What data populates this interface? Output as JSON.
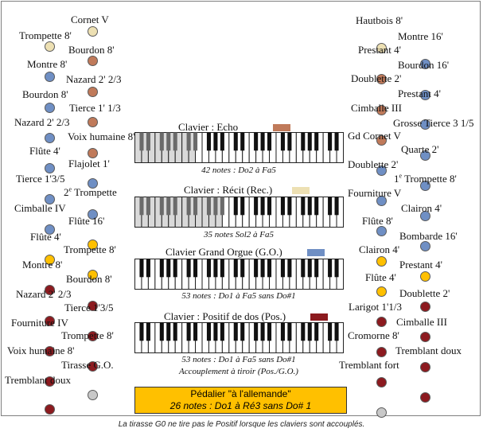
{
  "colors": {
    "echo": "#c07a5a",
    "recit": "#ede0b3",
    "grand_orgue": "#6f8fc4",
    "positif": "#8c1a1f",
    "tirasse": "#c8c8c8",
    "pedale": "#ffc000"
  },
  "left_stops": [
    {
      "label": "Cornet V",
      "color": "recit"
    },
    {
      "label": "Trompette 8'",
      "color": "recit"
    },
    {
      "label": "Bourdon 8'",
      "color": "echo"
    },
    {
      "label": "Montre 8'",
      "color": "grand_orgue"
    },
    {
      "label": "Nazard 2' 2/3",
      "color": "echo"
    },
    {
      "label": "Bourdon 8'",
      "color": "grand_orgue"
    },
    {
      "label": "Tierce 1' 1/3",
      "color": "echo"
    },
    {
      "label": "Nazard 2' 2/3",
      "color": "grand_orgue"
    },
    {
      "label": "Voix humaine 8'",
      "color": "echo"
    },
    {
      "label": "Flûte 4'",
      "color": "grand_orgue"
    },
    {
      "label": "Flajolet 1'",
      "color": "grand_orgue"
    },
    {
      "label": "Tierce 1'3/5",
      "color": "grand_orgue"
    },
    {
      "label_pre": "2",
      "label_sup": "e",
      "label": " Trompette",
      "color": "grand_orgue"
    },
    {
      "label": "Cimballe IV",
      "color": "grand_orgue"
    },
    {
      "label": "Flûte 16'",
      "color": "pedale"
    },
    {
      "label": "Flûte 4'",
      "color": "pedale"
    },
    {
      "label": "Trompette 8'",
      "color": "pedale"
    },
    {
      "label": "Montre 8'",
      "color": "positif"
    },
    {
      "label": "Bourdon 8'",
      "color": "positif"
    },
    {
      "label": "Nazard 2' 2/3",
      "color": "positif"
    },
    {
      "label": "Tierce 1'3/5",
      "color": "positif"
    },
    {
      "label": "Fourniture IV",
      "color": "positif"
    },
    {
      "label": "Trompette 8'",
      "color": "positif"
    },
    {
      "label": "Voix humaine 8'",
      "color": "positif"
    },
    {
      "label": "Tirasse G.O.",
      "color": "tirasse"
    },
    {
      "label": "Tremblant doux",
      "color": "positif"
    }
  ],
  "right_stops": [
    {
      "label": "Hautbois 8'",
      "color": "recit"
    },
    {
      "label": "Montre 16'",
      "color": "grand_orgue"
    },
    {
      "label": "Prestant 4'",
      "color": "echo"
    },
    {
      "label": "Bourdon 16'",
      "color": "grand_orgue"
    },
    {
      "label": "Doublette 2'",
      "color": "echo"
    },
    {
      "label": "Prestant 4'",
      "color": "grand_orgue"
    },
    {
      "label": "Cimballe III",
      "color": "echo"
    },
    {
      "label": "Grosse Tierce 3 1/5",
      "color": "grand_orgue"
    },
    {
      "label": "Gd Cornet V",
      "color": "grand_orgue"
    },
    {
      "label": "Quarte 2'",
      "color": "grand_orgue"
    },
    {
      "label": "Doublette 2'",
      "color": "grand_orgue"
    },
    {
      "label_pre": "1",
      "label_sup": "e",
      "label": " Trompette 8'",
      "color": "grand_orgue"
    },
    {
      "label": "Fourniture V",
      "color": "grand_orgue"
    },
    {
      "label": "Clairon 4'",
      "color": "grand_orgue"
    },
    {
      "label": "Flûte 8'",
      "color": "pedale"
    },
    {
      "label": "Bombarde 16'",
      "color": "pedale"
    },
    {
      "label": "Clairon 4'",
      "color": "pedale"
    },
    {
      "label": "Prestant 4'",
      "color": "positif"
    },
    {
      "label": "Flûte 4'",
      "color": "positif"
    },
    {
      "label": "Doublette 2'",
      "color": "positif"
    },
    {
      "label": "Larigot 1'1/3",
      "color": "positif"
    },
    {
      "label": "Cimballe III",
      "color": "positif"
    },
    {
      "label": "Cromorne 8'",
      "color": "positif"
    },
    {
      "label": "Tremblant doux",
      "color": "positif"
    },
    {
      "label": "Tremblant fort",
      "color": "tirasse"
    }
  ],
  "keyboards": [
    {
      "title": "Clavier : Echo",
      "color": "echo",
      "caption": "42 notes : Do2 à Fa5",
      "caption2": "",
      "shaded_keys": 9
    },
    {
      "title": "Clavier : Récit (Rec.)",
      "color": "recit",
      "caption": "35 notes Sol2 à Fa5",
      "caption2": "",
      "shaded_keys": 13
    },
    {
      "title": "Clavier Grand Orgue (G.O.)",
      "color": "grand_orgue",
      "caption": "53 notes : Do1 à Fa5 sans Do#1",
      "caption2": "",
      "shaded_keys": 0
    },
    {
      "title": "Clavier : Positif de dos (Pos.)",
      "color": "positif",
      "caption": "53 notes : Do1 à Fa5 sans Do#1",
      "caption2": "Accouplement à tiroir (Pos./G.O.)",
      "shaded_keys": 0
    }
  ],
  "pedal": {
    "title": "Pédalier \"à l'allemande\"",
    "subtitle": "26 notes : Do1 à Ré3 sans Do# 1"
  },
  "footer": "La tirasse G0 ne tire pas le Positif lorsque les claviers sont accouplés."
}
